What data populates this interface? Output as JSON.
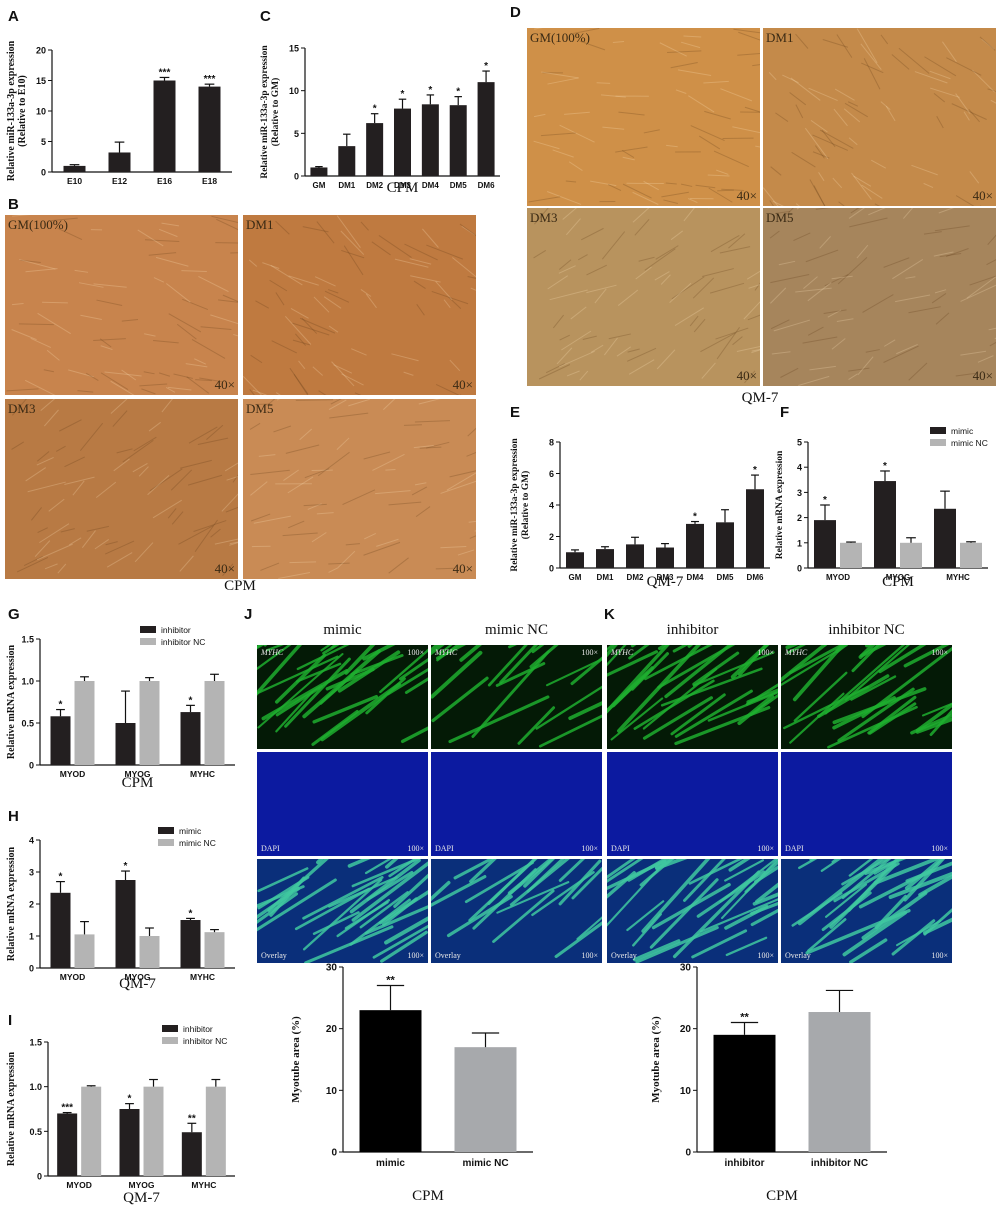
{
  "panel_letters": {
    "a": "A",
    "b": "B",
    "c": "C",
    "d": "D",
    "e": "E",
    "f": "F",
    "g": "G",
    "h": "H",
    "i": "I",
    "j": "J",
    "k": "K"
  },
  "captions": {
    "b": "CPM",
    "d": "QM-7",
    "j": "CPM",
    "k": "CPM"
  },
  "micro_b": [
    {
      "label": "GM(100%)",
      "mag": "40×"
    },
    {
      "label": "DM1",
      "mag": "40×"
    },
    {
      "label": "DM3",
      "mag": "40×"
    },
    {
      "label": "DM5",
      "mag": "40×"
    }
  ],
  "micro_d": [
    {
      "label": "GM(100%)",
      "mag": "40×"
    },
    {
      "label": "DM1",
      "mag": "40×"
    },
    {
      "label": "DM3",
      "mag": "40×"
    },
    {
      "label": "DM5",
      "mag": "40×"
    }
  ],
  "fluor": {
    "columns": [
      "mimic",
      "mimic NC",
      "inhibitor",
      "inhibitor NC"
    ],
    "rows": [
      "MYHC",
      "DAPI",
      "Overlay"
    ],
    "mag": "100×",
    "colors": {
      "green": "#1fae2f",
      "blue": "#1020b8",
      "overlay": "#1c5fa8"
    }
  },
  "colors": {
    "black": "#231f20",
    "gray": "#b4b4b4",
    "j_gray": "#a7a9ac",
    "microscopy": "#c88a45"
  },
  "chart_data": [
    {
      "id": "A",
      "type": "bar",
      "categories": [
        "E10",
        "E12",
        "E16",
        "E18"
      ],
      "values": [
        1.0,
        3.2,
        15.0,
        14.0
      ],
      "errors": [
        0.2,
        1.7,
        0.5,
        0.4
      ],
      "sig": [
        "",
        "",
        "***",
        "***"
      ],
      "ylabel": "Relative miR-133a-3p expression",
      "ylabel2": "(Relative to E10)",
      "xlabel": "",
      "ylim": [
        0,
        20
      ],
      "ticks": [
        0,
        5,
        10,
        15,
        20
      ],
      "colors": [
        "#231f20"
      ]
    },
    {
      "id": "C",
      "type": "bar",
      "categories": [
        "GM",
        "DM1",
        "DM2",
        "DM3",
        "DM4",
        "DM5",
        "DM6"
      ],
      "values": [
        1.0,
        3.5,
        6.2,
        7.9,
        8.4,
        8.3,
        11.0
      ],
      "errors": [
        0.1,
        1.4,
        1.1,
        1.1,
        1.1,
        1.0,
        1.3
      ],
      "sig": [
        "",
        "",
        "*",
        "*",
        "*",
        "*",
        "*"
      ],
      "ylabel": "Relative miR-133a-3p expression",
      "ylabel2": "(Relative to GM)",
      "xlabel": "CPM",
      "ylim": [
        0,
        15
      ],
      "ticks": [
        0,
        5,
        10,
        15
      ],
      "colors": [
        "#231f20"
      ]
    },
    {
      "id": "E",
      "type": "bar",
      "categories": [
        "GM",
        "DM1",
        "DM2",
        "DM3",
        "DM4",
        "DM5",
        "DM6"
      ],
      "values": [
        1.0,
        1.2,
        1.5,
        1.3,
        2.8,
        2.9,
        5.0
      ],
      "errors": [
        0.15,
        0.15,
        0.45,
        0.25,
        0.15,
        0.8,
        0.9
      ],
      "sig": [
        "",
        "",
        "",
        "",
        "*",
        "",
        "*"
      ],
      "ylabel": "Relative miR-133a-3p expression",
      "ylabel2": "(Relative to GM)",
      "xlabel": "QM-7",
      "ylim": [
        0,
        8
      ],
      "ticks": [
        0,
        2,
        4,
        6,
        8
      ],
      "colors": [
        "#231f20"
      ]
    },
    {
      "id": "F",
      "type": "bar",
      "categories": [
        "MYOD",
        "MYOG",
        "MYHC"
      ],
      "series": [
        {
          "name": "mimic",
          "values": [
            1.9,
            3.45,
            2.35
          ],
          "errors": [
            0.6,
            0.4,
            0.7
          ],
          "sig": [
            "*",
            "*",
            ""
          ]
        },
        {
          "name": "mimic NC",
          "values": [
            1.0,
            1.0,
            1.0
          ],
          "errors": [
            0.03,
            0.2,
            0.04
          ],
          "sig": [
            "",
            "",
            ""
          ]
        }
      ],
      "ylabel": "Relative mRNA expression",
      "xlabel": "CPM",
      "ylim": [
        0,
        5
      ],
      "ticks": [
        0,
        1,
        2,
        3,
        4,
        5
      ],
      "colors": [
        "#231f20",
        "#b4b4b4"
      ]
    },
    {
      "id": "G",
      "type": "bar",
      "categories": [
        "MYOD",
        "MYOG",
        "MYHC"
      ],
      "series": [
        {
          "name": "inhibitor",
          "values": [
            0.58,
            0.5,
            0.63
          ],
          "errors": [
            0.08,
            0.38,
            0.08
          ],
          "sig": [
            "*",
            "",
            "*"
          ]
        },
        {
          "name": "inhibitor NC",
          "values": [
            1.0,
            1.0,
            1.0
          ],
          "errors": [
            0.05,
            0.04,
            0.08
          ],
          "sig": [
            "",
            "",
            ""
          ]
        }
      ],
      "ylabel": "Relative mRNA expression",
      "xlabel": "CPM",
      "ylim": [
        0,
        1.5
      ],
      "ticks": [
        0,
        0.5,
        1.0,
        1.5
      ],
      "colors": [
        "#231f20",
        "#b4b4b4"
      ]
    },
    {
      "id": "H",
      "type": "bar",
      "categories": [
        "MYOD",
        "MYOG",
        "MYHC"
      ],
      "series": [
        {
          "name": "mimic",
          "values": [
            2.35,
            2.75,
            1.5
          ],
          "errors": [
            0.35,
            0.28,
            0.05
          ],
          "sig": [
            "*",
            "*",
            "*"
          ]
        },
        {
          "name": "mimic NC",
          "values": [
            1.05,
            1.0,
            1.12
          ],
          "errors": [
            0.4,
            0.25,
            0.08
          ],
          "sig": [
            "",
            "",
            ""
          ]
        }
      ],
      "ylabel": "Relative mRNA expression",
      "xlabel": "QM-7",
      "ylim": [
        0,
        4
      ],
      "ticks": [
        0,
        1,
        2,
        3,
        4
      ],
      "colors": [
        "#231f20",
        "#b4b4b4"
      ]
    },
    {
      "id": "I",
      "type": "bar",
      "categories": [
        "MYOD",
        "MYOG",
        "MYHC"
      ],
      "series": [
        {
          "name": "inhibitor",
          "values": [
            0.7,
            0.75,
            0.49
          ],
          "errors": [
            0.01,
            0.06,
            0.1
          ],
          "sig": [
            "***",
            "*",
            "**"
          ]
        },
        {
          "name": "inhibitor NC",
          "values": [
            1.0,
            1.0,
            1.0
          ],
          "errors": [
            0.01,
            0.08,
            0.08
          ],
          "sig": [
            "",
            "",
            ""
          ]
        }
      ],
      "ylabel": "Relative mRNA expression",
      "xlabel": "QM-7",
      "ylim": [
        0,
        1.5
      ],
      "ticks": [
        0,
        0.5,
        1.0,
        1.5
      ],
      "colors": [
        "#231f20",
        "#b4b4b4"
      ]
    },
    {
      "id": "J",
      "type": "bar",
      "categories": [
        "mimic",
        "mimic NC"
      ],
      "values": [
        23.0,
        17.0
      ],
      "errors": [
        4.0,
        2.3
      ],
      "sig": [
        "**",
        ""
      ],
      "ylabel": "Myotube area (%)",
      "xlabel": "CPM",
      "ylim": [
        0,
        30
      ],
      "ticks": [
        0,
        10,
        20,
        30
      ],
      "colors": [
        "#000000",
        "#a7a9ac"
      ]
    },
    {
      "id": "K",
      "type": "bar",
      "categories": [
        "inhibitor",
        "inhibitor NC"
      ],
      "values": [
        19.0,
        22.7
      ],
      "errors": [
        2.0,
        3.5
      ],
      "sig": [
        "**",
        ""
      ],
      "ylabel": "Myotube area (%)",
      "xlabel": "CPM",
      "ylim": [
        0,
        30
      ],
      "ticks": [
        0,
        10,
        20,
        30
      ],
      "colors": [
        "#000000",
        "#a7a9ac"
      ]
    }
  ]
}
